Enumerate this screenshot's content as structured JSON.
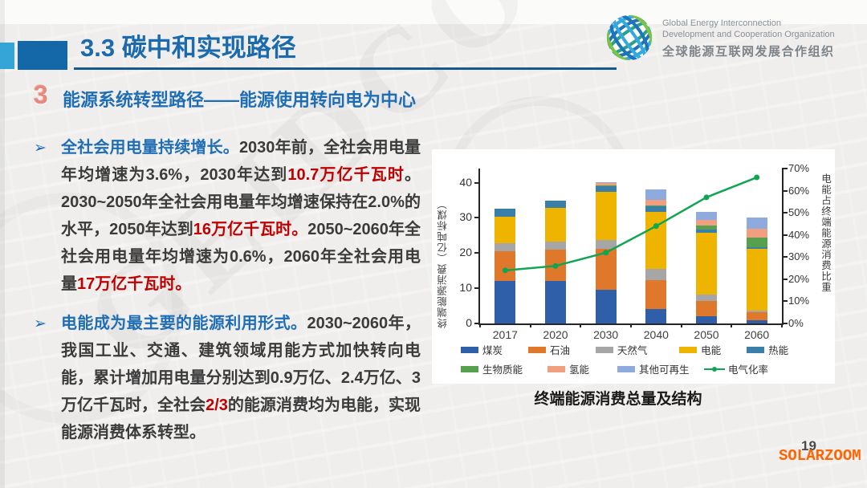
{
  "slide": {
    "title": "3.3 碳中和实现路径",
    "page_number": "19",
    "watermark": "SOLARZOOM",
    "ghost_watermark": "GEIDCO",
    "bullet_marker": "➢"
  },
  "logo": {
    "en_line1": "Global Energy Interconnection",
    "en_line2": "Development and Cooperation Organization",
    "cn_line": "全球能源互联网发展合作组织"
  },
  "section": {
    "number": "3",
    "heading": "能源系统转型路径——能源使用转向电为中心"
  },
  "bullets": [
    {
      "segments": [
        {
          "text": "全社会用电量持续增长。",
          "style": "lead"
        },
        {
          "text": "2030年前，全社会用电量年均增速为3.6%，2030年达到",
          "style": "normal"
        },
        {
          "text": "10.7万亿千瓦时",
          "style": "em"
        },
        {
          "text": "。2030~2050年全社会用电量年均增速保持在2.0%的水平，2050年达到",
          "style": "normal"
        },
        {
          "text": "16万亿千瓦时。",
          "style": "em"
        },
        {
          "text": "2050~2060年全社会用电量年均增速为0.6%，2060年全社会用电量",
          "style": "normal"
        },
        {
          "text": "17万亿千瓦时。",
          "style": "em"
        }
      ]
    },
    {
      "segments": [
        {
          "text": "电能成为最主要的能源利用形式。",
          "style": "lead"
        },
        {
          "text": "2030~2060年，我国工业、交通、建筑领域用能方式加快转向电能，累计增加用电量分别达到0.9万亿、2.4万亿、3万亿千瓦时，全社会",
          "style": "normal"
        },
        {
          "text": "2/3",
          "style": "em"
        },
        {
          "text": "的能源消费均为电能，实现能源消费体系转型。",
          "style": "normal"
        }
      ]
    }
  ],
  "chart_data": {
    "type": "bar",
    "subtype": "stacked-bar-with-line",
    "title": "终端能源消费总量及结构",
    "categories": [
      "2017",
      "2020",
      "2030",
      "2040",
      "2050",
      "2060"
    ],
    "series": [
      {
        "name": "煤炭",
        "color": "#2f5fa8",
        "values": [
          12.0,
          12.0,
          9.5,
          4.0,
          2.0,
          1.0
        ]
      },
      {
        "name": "石油",
        "color": "#e0782c",
        "values": [
          8.5,
          9.0,
          11.7,
          8.3,
          4.5,
          2.3
        ]
      },
      {
        "name": "天然气",
        "color": "#a6a6a6",
        "values": [
          2.3,
          2.3,
          2.5,
          3.2,
          1.8,
          0.3
        ]
      },
      {
        "name": "电能",
        "color": "#efb400",
        "values": [
          7.5,
          9.5,
          13.6,
          16.2,
          17.5,
          17.7
        ]
      },
      {
        "name": "热能",
        "color": "#3a7fa8",
        "values": [
          2.4,
          2.2,
          1.6,
          1.5,
          0.8,
          0.4
        ]
      },
      {
        "name": "生物质能",
        "color": "#57a04e",
        "values": [
          0,
          0,
          0.3,
          0.3,
          1.2,
          2.8
        ]
      },
      {
        "name": "氢能",
        "color": "#f0a080",
        "values": [
          0,
          0,
          0.8,
          1.5,
          1.6,
          2.5
        ]
      },
      {
        "name": "其他可再生",
        "color": "#8faadc",
        "values": [
          0,
          0,
          0.2,
          3.0,
          2.4,
          3.0
        ]
      }
    ],
    "line_series": {
      "name": "电气化率",
      "color": "#10a550",
      "axis": "right",
      "values": [
        24,
        26,
        32,
        44,
        57,
        66
      ]
    },
    "ylabel_left": "终端能源消费（亿吨标煤）",
    "ylabel_right": "电能占终端能源消费比重",
    "ylim_left": [
      0,
      44
    ],
    "ylim_right": [
      0,
      70
    ],
    "yticks_left": [
      0,
      10,
      20,
      30,
      40
    ],
    "yticks_right_step": 10,
    "grid": false,
    "legend_position": "bottom"
  }
}
